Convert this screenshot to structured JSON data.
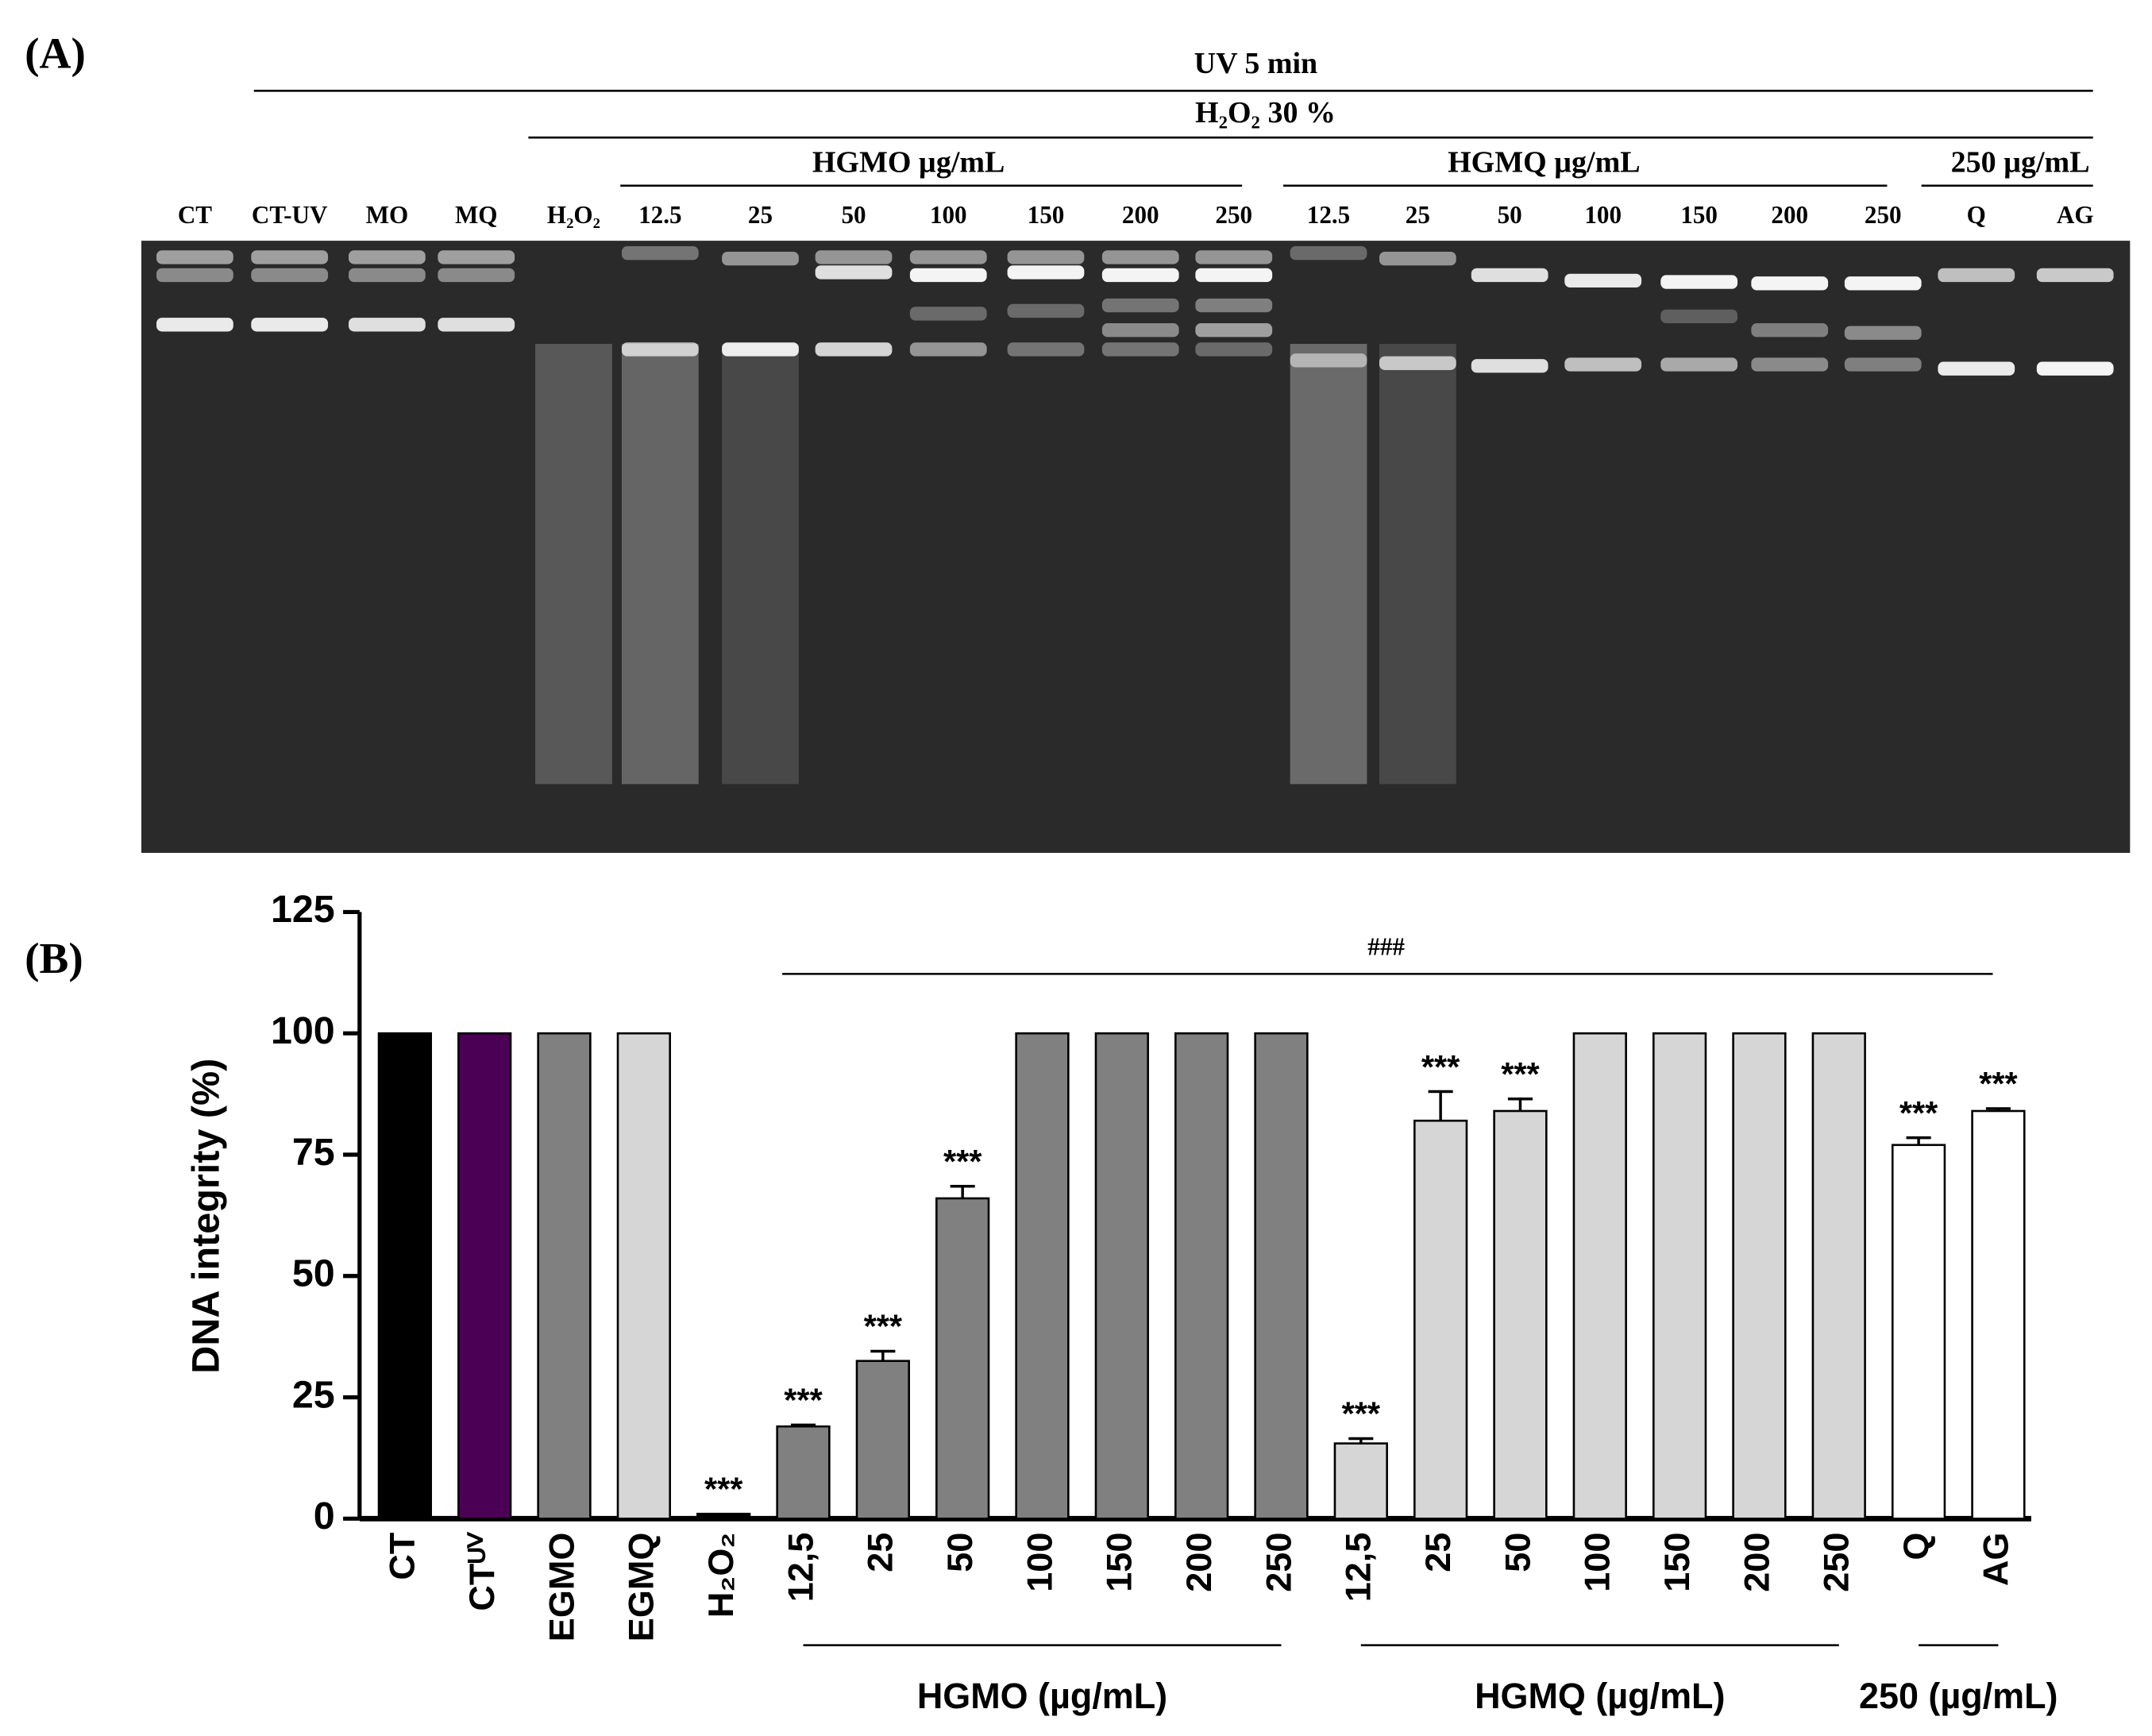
{
  "panel_a": {
    "label": "(A)",
    "uv_label": "UV 5 min",
    "h2o2_label": "H₂O₂ 30 %",
    "groups": [
      "HGMO µg/mL",
      "HGMQ µg/mL",
      "250 µg/mL"
    ],
    "lanes": [
      "CT",
      "CT-UV",
      "MO",
      "MQ",
      "H₂O₂",
      "12.5",
      "25",
      "50",
      "100",
      "150",
      "200",
      "250",
      "12.5",
      "25",
      "50",
      "100",
      "150",
      "200",
      "250",
      "Q",
      "AG"
    ]
  },
  "chart_data": {
    "type": "bar",
    "panel_label": "(B)",
    "y_label": "DNA integrity (%)",
    "categories": [
      "CT",
      "CTᵁⱽ",
      "EGMO",
      "EGMQ",
      "H₂O₂",
      "12,5",
      "25",
      "50",
      "100",
      "150",
      "200",
      "250",
      "12,5",
      "25",
      "50",
      "100",
      "150",
      "200",
      "250",
      "Q",
      "AG"
    ],
    "values": [
      100,
      100,
      100,
      100,
      1,
      19,
      32.5,
      66,
      100,
      100,
      100,
      100,
      15.5,
      82,
      84,
      100,
      100,
      100,
      100,
      77,
      84
    ],
    "errors": [
      0,
      0,
      0,
      0,
      0,
      0.3,
      2,
      2.5,
      0,
      0,
      0,
      0,
      1,
      6,
      2.5,
      0,
      0,
      0,
      0,
      1.5,
      0.5
    ],
    "colors": [
      "#000000",
      "#4b0055",
      "#808080",
      "#d6d6d6",
      "#000000",
      "#808080",
      "#808080",
      "#808080",
      "#808080",
      "#808080",
      "#808080",
      "#808080",
      "#d6d6d6",
      "#d6d6d6",
      "#d6d6d6",
      "#d6d6d6",
      "#d6d6d6",
      "#d6d6d6",
      "#d6d6d6",
      "#ffffff",
      "#ffffff"
    ],
    "significance": [
      null,
      null,
      null,
      null,
      "***",
      "***",
      "***",
      "***",
      null,
      null,
      null,
      null,
      "***",
      "***",
      "***",
      null,
      null,
      null,
      null,
      "***",
      "***"
    ],
    "overall_significance": "###",
    "groups": [
      "HGMO (µg/mL)",
      "HGMQ (µg/mL)",
      "250 (µg/mL)"
    ],
    "ylim": [
      0,
      125
    ],
    "yticks": [
      0,
      25,
      50,
      75,
      100,
      125
    ]
  }
}
